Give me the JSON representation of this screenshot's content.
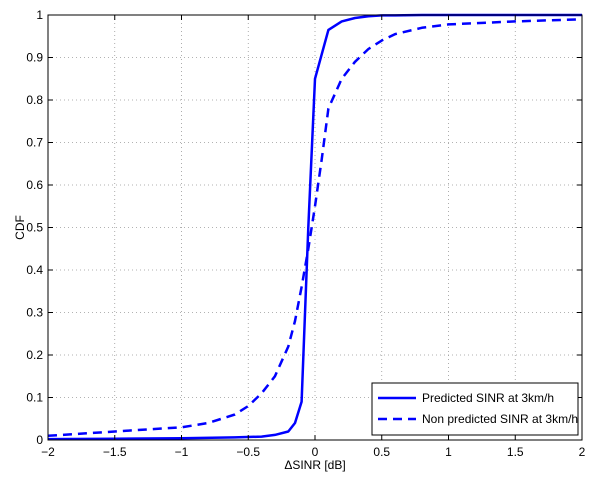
{
  "chart_data": {
    "type": "line",
    "xlabel": "ΔSINR [dB]",
    "ylabel": "CDF",
    "xlim": [
      -2,
      2
    ],
    "ylim": [
      0,
      1
    ],
    "xticks": [
      -2,
      -1.5,
      -1,
      -0.5,
      0,
      0.5,
      1,
      1.5,
      2
    ],
    "xtick_labels": [
      "−2",
      "−1.5",
      "−1",
      "−0.5",
      "0",
      "0.5",
      "1",
      "1.5",
      "2"
    ],
    "yticks": [
      0,
      0.1,
      0.2,
      0.3,
      0.4,
      0.5,
      0.6,
      0.7,
      0.8,
      0.9,
      1
    ],
    "ytick_labels": [
      "0",
      "0.1",
      "0.2",
      "0.3",
      "0.4",
      "0.5",
      "0.6",
      "0.7",
      "0.8",
      "0.9",
      "1"
    ],
    "grid": true,
    "legend_position": "bottom-right",
    "series": [
      {
        "name": "Predicted SINR at 3km/h",
        "style": "solid",
        "color": "#0000ff",
        "x": [
          -2,
          -1.5,
          -1,
          -0.6,
          -0.4,
          -0.3,
          -0.2,
          -0.15,
          -0.1,
          -0.05,
          0,
          0.1,
          0.2,
          0.3,
          0.4,
          0.5,
          0.6,
          0.8,
          1,
          1.5,
          2
        ],
        "y": [
          0.002,
          0.003,
          0.004,
          0.006,
          0.008,
          0.012,
          0.02,
          0.04,
          0.09,
          0.5,
          0.85,
          0.965,
          0.985,
          0.993,
          0.997,
          0.999,
          0.999,
          1.0,
          1.0,
          1.0,
          1.0
        ]
      },
      {
        "name": "Non predicted SINR at 3km/h",
        "style": "dashed",
        "color": "#0000ff",
        "x": [
          -2,
          -1.5,
          -1,
          -0.8,
          -0.6,
          -0.5,
          -0.4,
          -0.3,
          -0.2,
          -0.15,
          -0.1,
          -0.05,
          0,
          0.05,
          0.1,
          0.2,
          0.3,
          0.4,
          0.5,
          0.6,
          0.8,
          1,
          1.5,
          2
        ],
        "y": [
          0.01,
          0.02,
          0.03,
          0.04,
          0.06,
          0.08,
          0.11,
          0.15,
          0.22,
          0.28,
          0.36,
          0.45,
          0.55,
          0.66,
          0.78,
          0.85,
          0.89,
          0.92,
          0.94,
          0.955,
          0.97,
          0.978,
          0.985,
          0.99
        ]
      }
    ]
  }
}
